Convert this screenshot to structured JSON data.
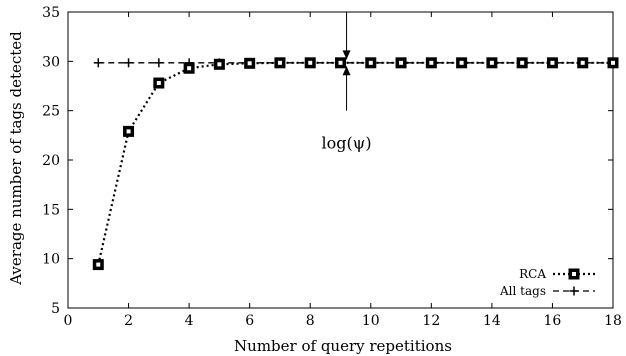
{
  "chart_data": {
    "type": "line",
    "xlabel": "Number of query repetitions",
    "ylabel": "Average number of tags detected",
    "xlim": [
      0,
      18
    ],
    "ylim": [
      5,
      35
    ],
    "xticks": [
      0,
      2,
      4,
      6,
      8,
      10,
      12,
      14,
      16,
      18
    ],
    "yticks": [
      5,
      10,
      15,
      20,
      25,
      30,
      35
    ],
    "grid": false,
    "legend_position": "bottom-right",
    "series": [
      {
        "name": "RCA",
        "marker": "square",
        "line_style": "dotted",
        "x": [
          1,
          2,
          3,
          4,
          5,
          6,
          7,
          8,
          9,
          10,
          11,
          12,
          13,
          14,
          15,
          16,
          17,
          18
        ],
        "y": [
          9.4,
          22.9,
          27.8,
          29.3,
          29.7,
          29.8,
          29.85,
          29.85,
          29.85,
          29.85,
          29.85,
          29.85,
          29.85,
          29.85,
          29.85,
          29.85,
          29.85,
          29.85
        ]
      },
      {
        "name": "All tags",
        "marker": "plus",
        "line_style": "dashed",
        "x": [
          1,
          2,
          3,
          4,
          5,
          6,
          7,
          8,
          9,
          10,
          11,
          12,
          13,
          14,
          15,
          16,
          17,
          18
        ],
        "y": [
          29.85,
          29.85,
          29.85,
          29.85,
          29.85,
          29.85,
          29.85,
          29.85,
          29.85,
          29.85,
          29.85,
          29.85,
          29.85,
          29.85,
          29.85,
          29.85,
          29.85,
          29.85
        ]
      }
    ],
    "annotation": {
      "text": "log(ψ)",
      "x": 9.2,
      "arrow_top_y": 35,
      "arrow_bottom_y": 30.2,
      "gap_top_y": 29.5,
      "arrow_lower_end_y": 25
    }
  }
}
